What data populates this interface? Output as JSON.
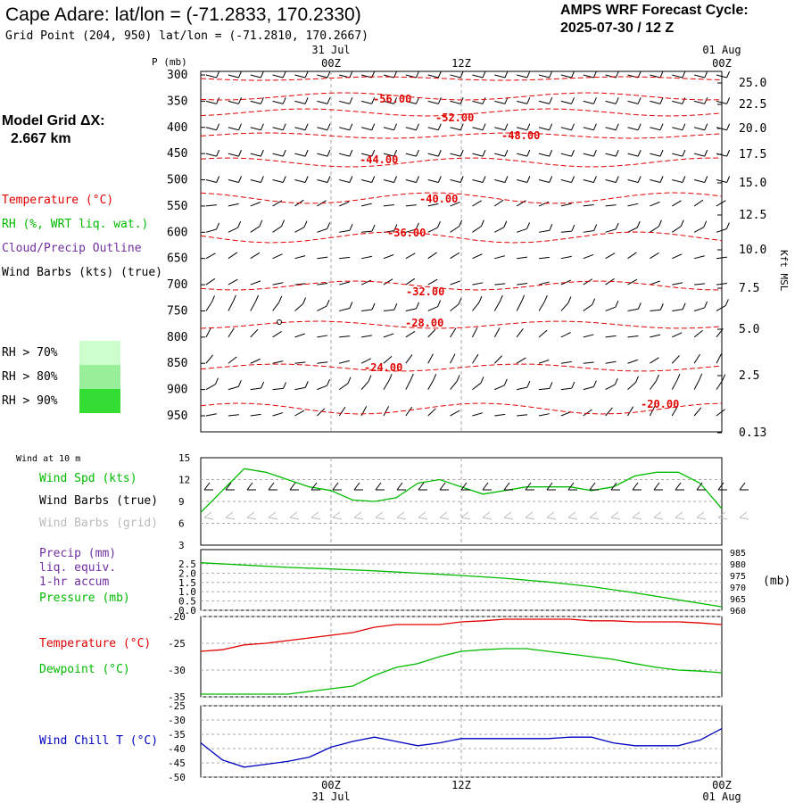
{
  "header": {
    "title": "Cape Adare:  lat/lon = (-71.2833, 170.2330)",
    "subtitle": "Grid Point (204, 950) lat/lon = (-71.2810, 170.2667)",
    "cycle_line1": "AMPS WRF Forecast Cycle:",
    "cycle_line2": "2025-07-30 / 12  Z"
  },
  "sidebar": {
    "model_grid_label": "Model Grid ΔX:",
    "model_grid_value": "2.667 km",
    "legend_temperature": "Temperature (°C)",
    "legend_rh": "RH (%, WRT liq. wat.)",
    "legend_cloud": "Cloud/Precip Outline",
    "legend_wind": "Wind Barbs (kts) (true)",
    "rh_levels": [
      {
        "label": "RH > 70%",
        "color": "#ccffcc"
      },
      {
        "label": "RH > 80%",
        "color": "#99ee99"
      },
      {
        "label": "RH > 90%",
        "color": "#33dd33"
      }
    ]
  },
  "time_axis": {
    "top_dates": [
      "31 Jul",
      "01 Aug"
    ],
    "ticks": [
      "00Z",
      "12Z",
      "00Z"
    ],
    "bottom_dates": [
      "31 Jul",
      "01 Aug"
    ]
  },
  "panel_labels": {
    "p_axis": "P (mb)",
    "kft_axis": "Kft MSL",
    "wind10": "Wind at 10 m",
    "wind_spd": "Wind Spd (kts)",
    "wind_barbs_true": "Wind Barbs (true)",
    "wind_barbs_grid": "Wind Barbs (grid)",
    "precip": "Precip (mm)",
    "precip2": "liq. equiv.",
    "precip3": "1-hr accum",
    "pressure": "Pressure (mb)",
    "pressure_unit": "(mb)",
    "temperature": "Temperature (°C)",
    "dewpoint": "Dewpoint (°C)",
    "windchill": "Wind Chill T (°C)"
  },
  "colors": {
    "temperature": "#e00000",
    "rh": "#00bb00",
    "cloud": "#7030a0",
    "windchill": "#0000c0",
    "grid": "#aaaaaa"
  },
  "chart_data": [
    {
      "type": "line",
      "name": "cross-section",
      "y_ticks_left": [
        "300",
        "350",
        "400",
        "450",
        "500",
        "550",
        "600",
        "650",
        "700",
        "750",
        "800",
        "850",
        "900",
        "950"
      ],
      "y_ticks_right": [
        "25.0",
        "22.5",
        "20.0",
        "17.5",
        "15.0",
        "12.5",
        "10.0",
        "7.5",
        "5.0",
        "2.5",
        "0.13"
      ],
      "isotherm_labels": [
        "-56.00",
        "-52.00",
        "-48.00",
        "-44.00",
        "-40.00",
        "-36.00",
        "-32.00",
        "-28.00",
        "-24.00",
        "-20.00"
      ]
    },
    {
      "type": "line",
      "name": "wind10",
      "ylim": [
        3,
        15
      ],
      "y_ticks": [
        "15",
        "12",
        "9",
        "6",
        "3"
      ],
      "x_hours": [
        0,
        2,
        4,
        6,
        8,
        10,
        12,
        14,
        16,
        18,
        20,
        22,
        24,
        26,
        28,
        30,
        32,
        34,
        36,
        38,
        40,
        42,
        44,
        46,
        48
      ],
      "wind_speed": [
        7.5,
        10.5,
        13.5,
        13,
        12,
        11,
        10.5,
        9.2,
        9,
        9.5,
        11.5,
        12,
        11,
        10,
        10.5,
        11,
        11,
        11,
        10.5,
        11,
        12.5,
        13,
        13,
        11.5,
        8
      ]
    },
    {
      "type": "line",
      "name": "precip-pressure",
      "precip_ylim": [
        0,
        2.5
      ],
      "precip_ticks": [
        "2.5",
        "2.0",
        "1.5",
        "1.0",
        "0.5",
        "0.0"
      ],
      "pressure_ylim": [
        960,
        985
      ],
      "pressure_ticks": [
        "985",
        "980",
        "975",
        "970",
        "965",
        "960"
      ],
      "x_hours": [
        0,
        4,
        8,
        12,
        16,
        20,
        24,
        28,
        32,
        36,
        40,
        44,
        48
      ],
      "pressure": [
        980.5,
        979.5,
        978.5,
        977.8,
        977,
        976,
        975,
        973.8,
        972.2,
        970.2,
        967.5,
        964.5,
        961.5
      ]
    },
    {
      "type": "line",
      "name": "temp-dewpoint",
      "ylim": [
        -35,
        -20
      ],
      "y_ticks": [
        "-20",
        "-25",
        "-30",
        "-35"
      ],
      "x_hours": [
        0,
        2,
        4,
        6,
        8,
        10,
        12,
        14,
        16,
        18,
        20,
        22,
        24,
        26,
        28,
        30,
        32,
        34,
        36,
        38,
        40,
        42,
        44,
        46,
        48
      ],
      "temperature": [
        -26.5,
        -26.2,
        -25.3,
        -25,
        -24.5,
        -24,
        -23.5,
        -23,
        -22,
        -21.5,
        -21.5,
        -21.5,
        -21,
        -20.8,
        -20.5,
        -20.5,
        -20.5,
        -20.5,
        -20.8,
        -20.8,
        -21,
        -21,
        -21,
        -21.2,
        -21.5
      ],
      "dewpoint": [
        -34.5,
        -34.5,
        -34.5,
        -34.5,
        -34.5,
        -34,
        -33.5,
        -33,
        -31,
        -29.5,
        -28.8,
        -27.5,
        -26.5,
        -26.2,
        -26,
        -26,
        -26.5,
        -27,
        -27.5,
        -28,
        -28.8,
        -29.5,
        -30,
        -30.2,
        -30.5
      ]
    },
    {
      "type": "line",
      "name": "windchill",
      "ylim": [
        -50,
        -25
      ],
      "y_ticks": [
        "-25",
        "-30",
        "-35",
        "-40",
        "-45",
        "-50"
      ],
      "x_hours": [
        0,
        2,
        4,
        6,
        8,
        10,
        12,
        14,
        16,
        18,
        20,
        22,
        24,
        26,
        28,
        30,
        32,
        34,
        36,
        38,
        40,
        42,
        44,
        46,
        48
      ],
      "windchill": [
        -38,
        -44,
        -46.5,
        -45.5,
        -44.5,
        -43,
        -39.5,
        -37.5,
        -36,
        -37.5,
        -39,
        -38,
        -36.5,
        -36.5,
        -36.5,
        -36.5,
        -36.5,
        -36,
        -36,
        -38,
        -39,
        -39,
        -39,
        -37,
        -33
      ]
    }
  ]
}
